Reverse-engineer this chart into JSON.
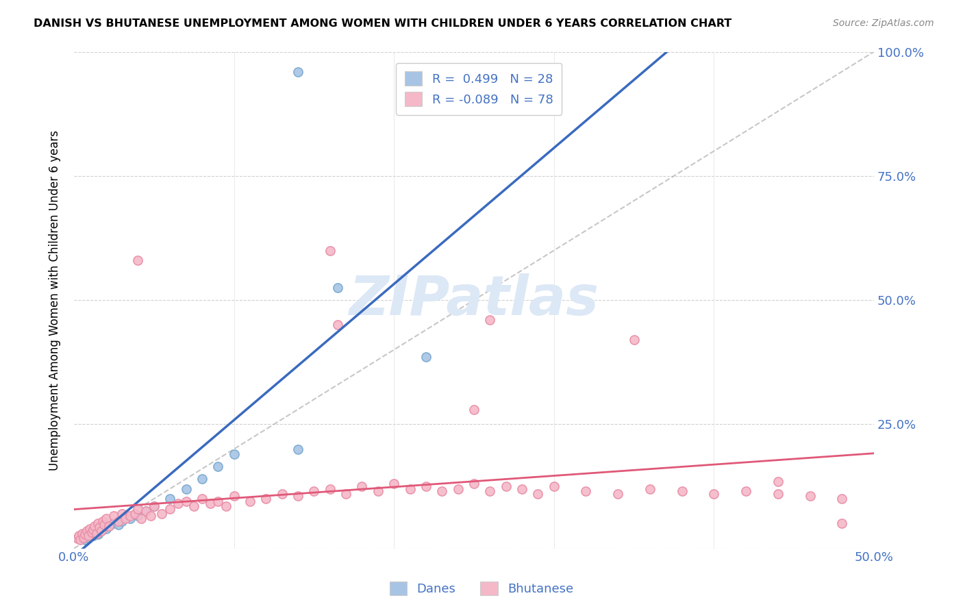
{
  "title": "DANISH VS BHUTANESE UNEMPLOYMENT AMONG WOMEN WITH CHILDREN UNDER 6 YEARS CORRELATION CHART",
  "source": "Source: ZipAtlas.com",
  "ylabel": "Unemployment Among Women with Children Under 6 years",
  "xlim": [
    0.0,
    0.5
  ],
  "ylim": [
    0.0,
    1.0
  ],
  "xticks": [
    0.0,
    0.1,
    0.2,
    0.3,
    0.4,
    0.5
  ],
  "yticks": [
    0.0,
    0.25,
    0.5,
    0.75,
    1.0
  ],
  "ytick_labels_right": [
    "",
    "25.0%",
    "50.0%",
    "75.0%",
    "100.0%"
  ],
  "xtick_labels": [
    "0.0%",
    "",
    "",
    "",
    "",
    "50.0%"
  ],
  "dane_R": 0.499,
  "dane_N": 28,
  "bhutanese_R": -0.089,
  "bhutanese_N": 78,
  "legend_label1": "Danes",
  "legend_label2": "Bhutanese",
  "blue_color": "#a8c4e5",
  "blue_edge_color": "#7aaad0",
  "blue_line_color": "#3a6abf",
  "pink_color": "#f5b8c8",
  "pink_edge_color": "#e890a8",
  "pink_line_color": "#e05878",
  "legend_text_color": "#4472c4",
  "watermark_color": "#dce8f5",
  "background_color": "#ffffff",
  "dane_x": [
    0.003,
    0.005,
    0.007,
    0.008,
    0.01,
    0.012,
    0.013,
    0.015,
    0.016,
    0.018,
    0.02,
    0.022,
    0.025,
    0.028,
    0.03,
    0.035,
    0.04,
    0.045,
    0.05,
    0.06,
    0.07,
    0.08,
    0.09,
    0.1,
    0.14,
    0.165,
    0.22,
    0.14
  ],
  "dane_y": [
    0.02,
    0.025,
    0.018,
    0.022,
    0.03,
    0.025,
    0.035,
    0.028,
    0.032,
    0.038,
    0.04,
    0.045,
    0.05,
    0.048,
    0.055,
    0.06,
    0.065,
    0.075,
    0.085,
    0.1,
    0.12,
    0.14,
    0.165,
    0.19,
    0.2,
    0.525,
    0.385,
    0.96
  ],
  "bhut_x": [
    0.002,
    0.003,
    0.004,
    0.005,
    0.006,
    0.007,
    0.008,
    0.009,
    0.01,
    0.011,
    0.012,
    0.013,
    0.014,
    0.015,
    0.016,
    0.017,
    0.018,
    0.019,
    0.02,
    0.022,
    0.025,
    0.028,
    0.03,
    0.032,
    0.035,
    0.038,
    0.04,
    0.042,
    0.045,
    0.048,
    0.05,
    0.055,
    0.06,
    0.065,
    0.07,
    0.075,
    0.08,
    0.085,
    0.09,
    0.095,
    0.1,
    0.11,
    0.12,
    0.13,
    0.14,
    0.15,
    0.16,
    0.17,
    0.18,
    0.19,
    0.2,
    0.21,
    0.22,
    0.23,
    0.24,
    0.25,
    0.26,
    0.27,
    0.28,
    0.29,
    0.3,
    0.32,
    0.34,
    0.36,
    0.38,
    0.4,
    0.42,
    0.44,
    0.46,
    0.48,
    0.16,
    0.26,
    0.35,
    0.165,
    0.25,
    0.44,
    0.48,
    0.04
  ],
  "bhut_y": [
    0.02,
    0.025,
    0.018,
    0.03,
    0.022,
    0.028,
    0.035,
    0.025,
    0.04,
    0.032,
    0.038,
    0.045,
    0.03,
    0.05,
    0.042,
    0.035,
    0.055,
    0.048,
    0.06,
    0.045,
    0.065,
    0.055,
    0.07,
    0.06,
    0.065,
    0.07,
    0.08,
    0.06,
    0.075,
    0.065,
    0.085,
    0.07,
    0.08,
    0.09,
    0.095,
    0.085,
    0.1,
    0.09,
    0.095,
    0.085,
    0.105,
    0.095,
    0.1,
    0.11,
    0.105,
    0.115,
    0.12,
    0.11,
    0.125,
    0.115,
    0.13,
    0.12,
    0.125,
    0.115,
    0.12,
    0.13,
    0.115,
    0.125,
    0.12,
    0.11,
    0.125,
    0.115,
    0.11,
    0.12,
    0.115,
    0.11,
    0.115,
    0.11,
    0.105,
    0.1,
    0.6,
    0.46,
    0.42,
    0.45,
    0.28,
    0.135,
    0.05,
    0.58
  ]
}
